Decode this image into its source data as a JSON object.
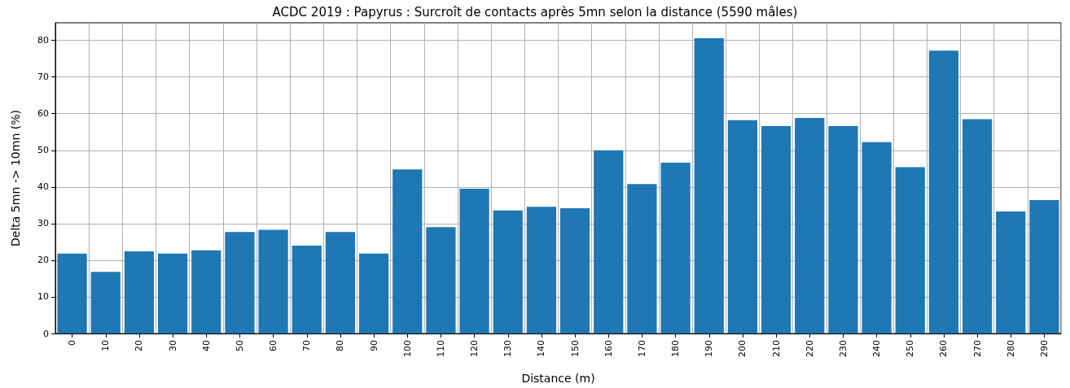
{
  "chart_data": {
    "type": "bar",
    "title": "ACDC 2019 : Papyrus : Surcroît de contacts après 5mn selon la distance (5590 mâles)",
    "xlabel": "Distance (m)",
    "ylabel": "Delta 5mn -> 10mn (%)",
    "categories": [
      "0",
      "10",
      "20",
      "30",
      "40",
      "50",
      "60",
      "70",
      "80",
      "90",
      "100",
      "110",
      "120",
      "130",
      "140",
      "150",
      "160",
      "170",
      "180",
      "190",
      "200",
      "210",
      "220",
      "230",
      "240",
      "250",
      "260",
      "270",
      "280",
      "290"
    ],
    "values": [
      21.8,
      16.8,
      22.4,
      21.8,
      22.7,
      27.7,
      28.3,
      24,
      27.7,
      21.8,
      44.8,
      29,
      39.5,
      33.6,
      34.6,
      34.2,
      50,
      40.8,
      46.6,
      80.6,
      58.2,
      56.6,
      58.8,
      56.6,
      52.2,
      45.4,
      77.2,
      58.5,
      33.3,
      36.4
    ],
    "color": "#1f77b4",
    "ylim": [
      0,
      84.8
    ],
    "yticks": [
      0,
      10,
      20,
      30,
      40,
      50,
      60,
      70,
      80
    ],
    "grid": true
  }
}
